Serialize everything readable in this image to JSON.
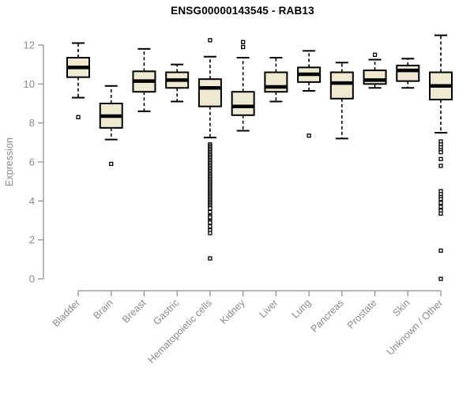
{
  "chart_data": {
    "type": "boxplot",
    "title": "ENSG00000143545 - RAB13",
    "xlabel": "",
    "ylabel": "Expression",
    "ylim": [
      0,
      12
    ],
    "yticks": [
      0,
      2,
      4,
      6,
      8,
      10,
      12
    ],
    "grid": false,
    "legend": "none",
    "categories": [
      "Bladder",
      "Brain",
      "Breast",
      "Gastric",
      "Hematopoietic cells",
      "Kidney",
      "Liver",
      "Lung",
      "Pancreas",
      "Prostate",
      "Skin",
      "Unknown / Other"
    ],
    "series": [
      {
        "label": "Bladder",
        "whisker_low": 9.3,
        "q1": 10.35,
        "median": 10.85,
        "q3": 11.35,
        "whisker_high": 12.1,
        "outliers": [
          8.3
        ]
      },
      {
        "label": "Brain",
        "whisker_low": 7.15,
        "q1": 7.75,
        "median": 8.35,
        "q3": 9.0,
        "whisker_high": 9.9,
        "outliers": [
          5.9
        ]
      },
      {
        "label": "Breast",
        "whisker_low": 8.6,
        "q1": 9.6,
        "median": 10.15,
        "q3": 10.65,
        "whisker_high": 11.8,
        "outliers": []
      },
      {
        "label": "Gastric",
        "whisker_low": 9.1,
        "q1": 9.8,
        "median": 10.2,
        "q3": 10.6,
        "whisker_high": 11.0,
        "outliers": []
      },
      {
        "label": "Hematopoietic cells",
        "whisker_low": 7.25,
        "q1": 8.85,
        "median": 9.8,
        "q3": 10.25,
        "whisker_high": 11.4,
        "outliers": [
          12.25,
          6.9,
          6.82,
          6.74,
          6.66,
          6.58,
          6.5,
          6.42,
          6.34,
          6.26,
          6.18,
          6.1,
          6.02,
          5.94,
          5.86,
          5.78,
          5.7,
          5.62,
          5.54,
          5.46,
          5.38,
          5.3,
          5.22,
          5.14,
          5.06,
          4.98,
          4.9,
          4.82,
          4.74,
          4.66,
          4.58,
          4.5,
          4.42,
          4.34,
          4.26,
          4.18,
          4.1,
          4.02,
          3.94,
          3.86,
          3.78,
          3.7,
          3.62,
          3.43,
          3.23,
          3.16,
          2.96,
          2.89,
          2.69,
          2.49,
          2.35,
          1.05
        ]
      },
      {
        "label": "Kidney",
        "whisker_low": 7.6,
        "q1": 8.4,
        "median": 8.85,
        "q3": 9.6,
        "whisker_high": 11.35,
        "outliers": [
          12.15,
          11.9
        ]
      },
      {
        "label": "Liver",
        "whisker_low": 9.1,
        "q1": 9.6,
        "median": 9.85,
        "q3": 10.6,
        "whisker_high": 11.35,
        "outliers": []
      },
      {
        "label": "Lung",
        "whisker_low": 9.65,
        "q1": 10.1,
        "median": 10.5,
        "q3": 10.85,
        "whisker_high": 11.7,
        "outliers": [
          7.35
        ]
      },
      {
        "label": "Pancreas",
        "whisker_low": 7.2,
        "q1": 9.25,
        "median": 10.05,
        "q3": 10.6,
        "whisker_high": 11.1,
        "outliers": []
      },
      {
        "label": "Prostate",
        "whisker_low": 9.8,
        "q1": 10.0,
        "median": 10.2,
        "q3": 10.7,
        "whisker_high": 11.25,
        "outliers": [
          11.5
        ]
      },
      {
        "label": "Skin",
        "whisker_low": 9.8,
        "q1": 10.15,
        "median": 10.7,
        "q3": 10.95,
        "whisker_high": 11.3,
        "outliers": []
      },
      {
        "label": "Unknown / Other",
        "whisker_low": 7.5,
        "q1": 9.2,
        "median": 9.9,
        "q3": 10.6,
        "whisker_high": 12.5,
        "outliers": [
          7.05,
          6.9,
          6.75,
          6.6,
          6.5,
          6.15,
          5.8,
          4.5,
          4.35,
          4.2,
          4.1,
          3.9,
          3.7,
          3.5,
          3.35,
          1.45,
          0.0
        ]
      }
    ]
  },
  "colors": {
    "box_fill": "#F0E9D2",
    "box_stroke": "#000000",
    "median": "#000000",
    "axis": "#8a8a8a",
    "title": "#000000",
    "background": "#ffffff"
  }
}
